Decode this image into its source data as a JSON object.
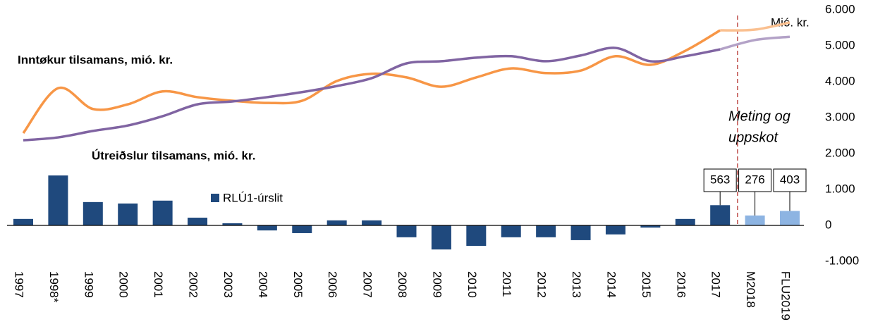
{
  "chart_data": {
    "type": "bar-line",
    "categories": [
      "1997",
      "1998*",
      "1999",
      "2000",
      "2001",
      "2002",
      "2003",
      "2004",
      "2005",
      "2006",
      "2007",
      "2008",
      "2009",
      "2010",
      "2011",
      "2012",
      "2013",
      "2014",
      "2015",
      "2016",
      "2017",
      "M2018",
      "FLU2019"
    ],
    "ylim": [
      -1000,
      6000
    ],
    "yticks": [
      {
        "value": 6000,
        "label": "6.000"
      },
      {
        "value": 5000,
        "label": "5.000"
      },
      {
        "value": 4000,
        "label": "4.000"
      },
      {
        "value": 3000,
        "label": "3.000"
      },
      {
        "value": 2000,
        "label": "2.000"
      },
      {
        "value": 1000,
        "label": "1.000"
      },
      0,
      {
        "value": -1000,
        "label": "-1.000"
      }
    ],
    "bars": {
      "name": "RLÚ1-úrslit",
      "color": "#1f497d",
      "colors": [
        "#1f497d",
        "#1f497d",
        "#1f497d",
        "#1f497d",
        "#1f497d",
        "#1f497d",
        "#1f497d",
        "#1f497d",
        "#1f497d",
        "#1f497d",
        "#1f497d",
        "#1f497d",
        "#1f497d",
        "#1f497d",
        "#1f497d",
        "#1f497d",
        "#1f497d",
        "#1f497d",
        "#1f497d",
        "#1f497d",
        "#1f497d",
        "#8db4e2",
        "#8db4e2"
      ],
      "values": [
        180,
        1390,
        650,
        610,
        690,
        215,
        60,
        -140,
        -215,
        140,
        140,
        -330,
        -670,
        -570,
        -330,
        -330,
        -410,
        -250,
        -60,
        180,
        563,
        276,
        403
      ],
      "value_labels": [
        null,
        null,
        null,
        null,
        null,
        null,
        null,
        null,
        null,
        null,
        null,
        null,
        null,
        null,
        null,
        null,
        null,
        null,
        null,
        null,
        "563",
        "276",
        "403"
      ]
    },
    "series": [
      {
        "name": "Inntøkur tilsamans, mió. kr.",
        "color": "#f79646",
        "forecast_color": "#fac090",
        "values": [
          2570,
          3820,
          3240,
          3370,
          3730,
          3570,
          3470,
          3410,
          3470,
          4020,
          4220,
          4120,
          3860,
          4120,
          4370,
          4240,
          4310,
          4710,
          4470,
          4860,
          5430,
          5450,
          5650
        ]
      },
      {
        "name": "Útreiðslur tilsamans, mió. kr.",
        "color": "#8064a2",
        "forecast_color": "#b3a2c7",
        "values": [
          2370,
          2450,
          2630,
          2780,
          3040,
          3370,
          3450,
          3570,
          3710,
          3880,
          4100,
          4510,
          4570,
          4670,
          4710,
          4570,
          4730,
          4940,
          4570,
          4710,
          4900,
          5160,
          5250
        ]
      }
    ],
    "unit_label": "Mió. kr.",
    "annotation": [
      "Meting og",
      "uppskot"
    ],
    "annotation_color": "#c0504d"
  }
}
